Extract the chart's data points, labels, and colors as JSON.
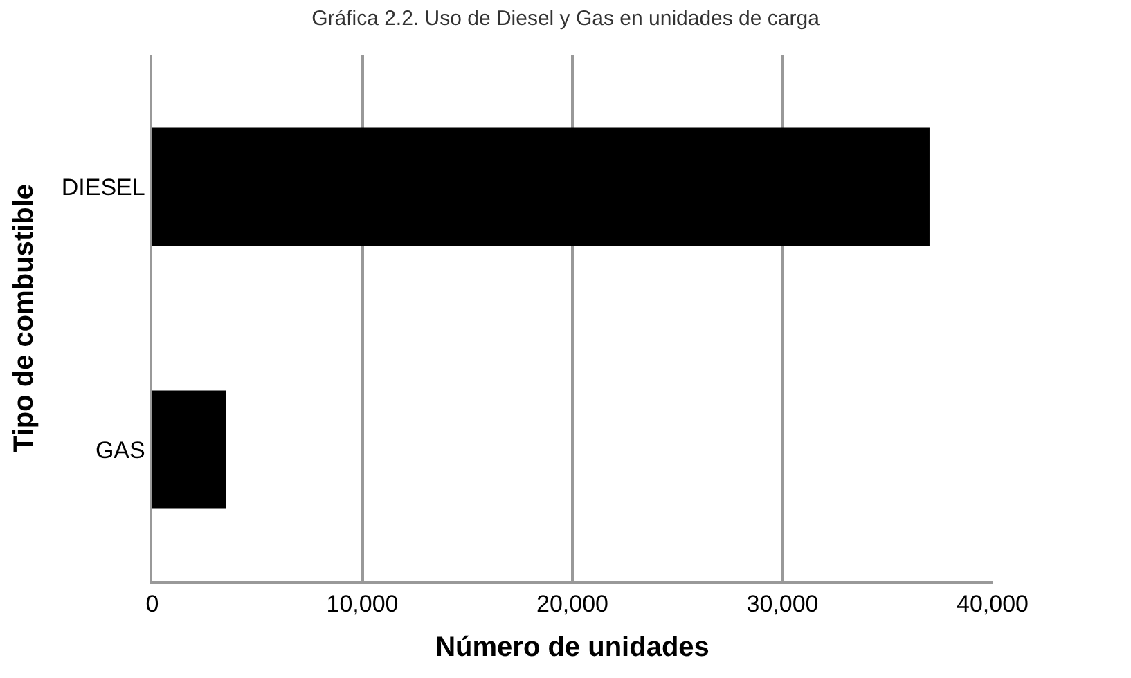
{
  "chart_data": {
    "type": "bar",
    "orientation": "horizontal",
    "title": "Gráfica 2.2. Uso de Diesel y Gas en unidades de carga",
    "xlabel": "Número de unidades",
    "ylabel": "Tipo de combustible",
    "categories": [
      "DIESEL",
      "GAS"
    ],
    "values": [
      37000,
      3500
    ],
    "color": "#000000",
    "xlim": [
      0,
      40000
    ],
    "xticks": [
      {
        "value": 0,
        "label": "0"
      },
      {
        "value": 10000,
        "label": "10,000"
      },
      {
        "value": 20000,
        "label": "20,000"
      },
      {
        "value": 30000,
        "label": "30,000"
      },
      {
        "value": 40000,
        "label": "40,000"
      }
    ],
    "grid": "x"
  }
}
